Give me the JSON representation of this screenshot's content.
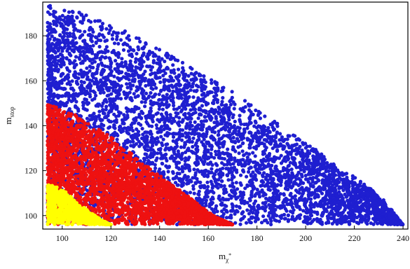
{
  "chart_data": {
    "type": "scatter",
    "title": "",
    "xlabel": "mχ*",
    "ylabel": "mstop",
    "xlabel_parts": {
      "base": "m",
      "sub": "χ",
      "sup": "*"
    },
    "ylabel_parts": {
      "base": "m",
      "sub": "stop"
    },
    "xlim": [
      92,
      242
    ],
    "ylim": [
      94,
      195
    ],
    "x_ticks": [
      100,
      120,
      140,
      160,
      180,
      200,
      220,
      240
    ],
    "y_ticks": [
      100,
      120,
      140,
      160,
      180
    ],
    "grid": false,
    "legend": "none",
    "series": [
      {
        "color": "#1f1fd0",
        "x_min": 94,
        "x_max": 240,
        "boundary": [
          [
            94,
            194
          ],
          [
            110,
            190
          ],
          [
            130,
            180
          ],
          [
            150,
            168
          ],
          [
            170,
            155
          ],
          [
            190,
            140
          ],
          [
            210,
            125
          ],
          [
            230,
            110
          ],
          [
            240,
            96
          ]
        ],
        "y_min": 96,
        "approx_points": 5200
      },
      {
        "color": "#ee1111",
        "x_min": 94,
        "x_max": 170,
        "boundary": [
          [
            94,
            150
          ],
          [
            105,
            145
          ],
          [
            120,
            135
          ],
          [
            135,
            122
          ],
          [
            150,
            110
          ],
          [
            162,
            100
          ],
          [
            170,
            96
          ]
        ],
        "y_min": 96,
        "approx_points": 3600
      },
      {
        "color": "#ffff00",
        "x_min": 94,
        "x_max": 120,
        "boundary": [
          [
            94,
            114
          ],
          [
            100,
            112
          ],
          [
            106,
            106
          ],
          [
            112,
            101
          ],
          [
            118,
            97
          ],
          [
            120,
            96
          ]
        ],
        "y_min": 96,
        "approx_points": 900
      }
    ]
  }
}
